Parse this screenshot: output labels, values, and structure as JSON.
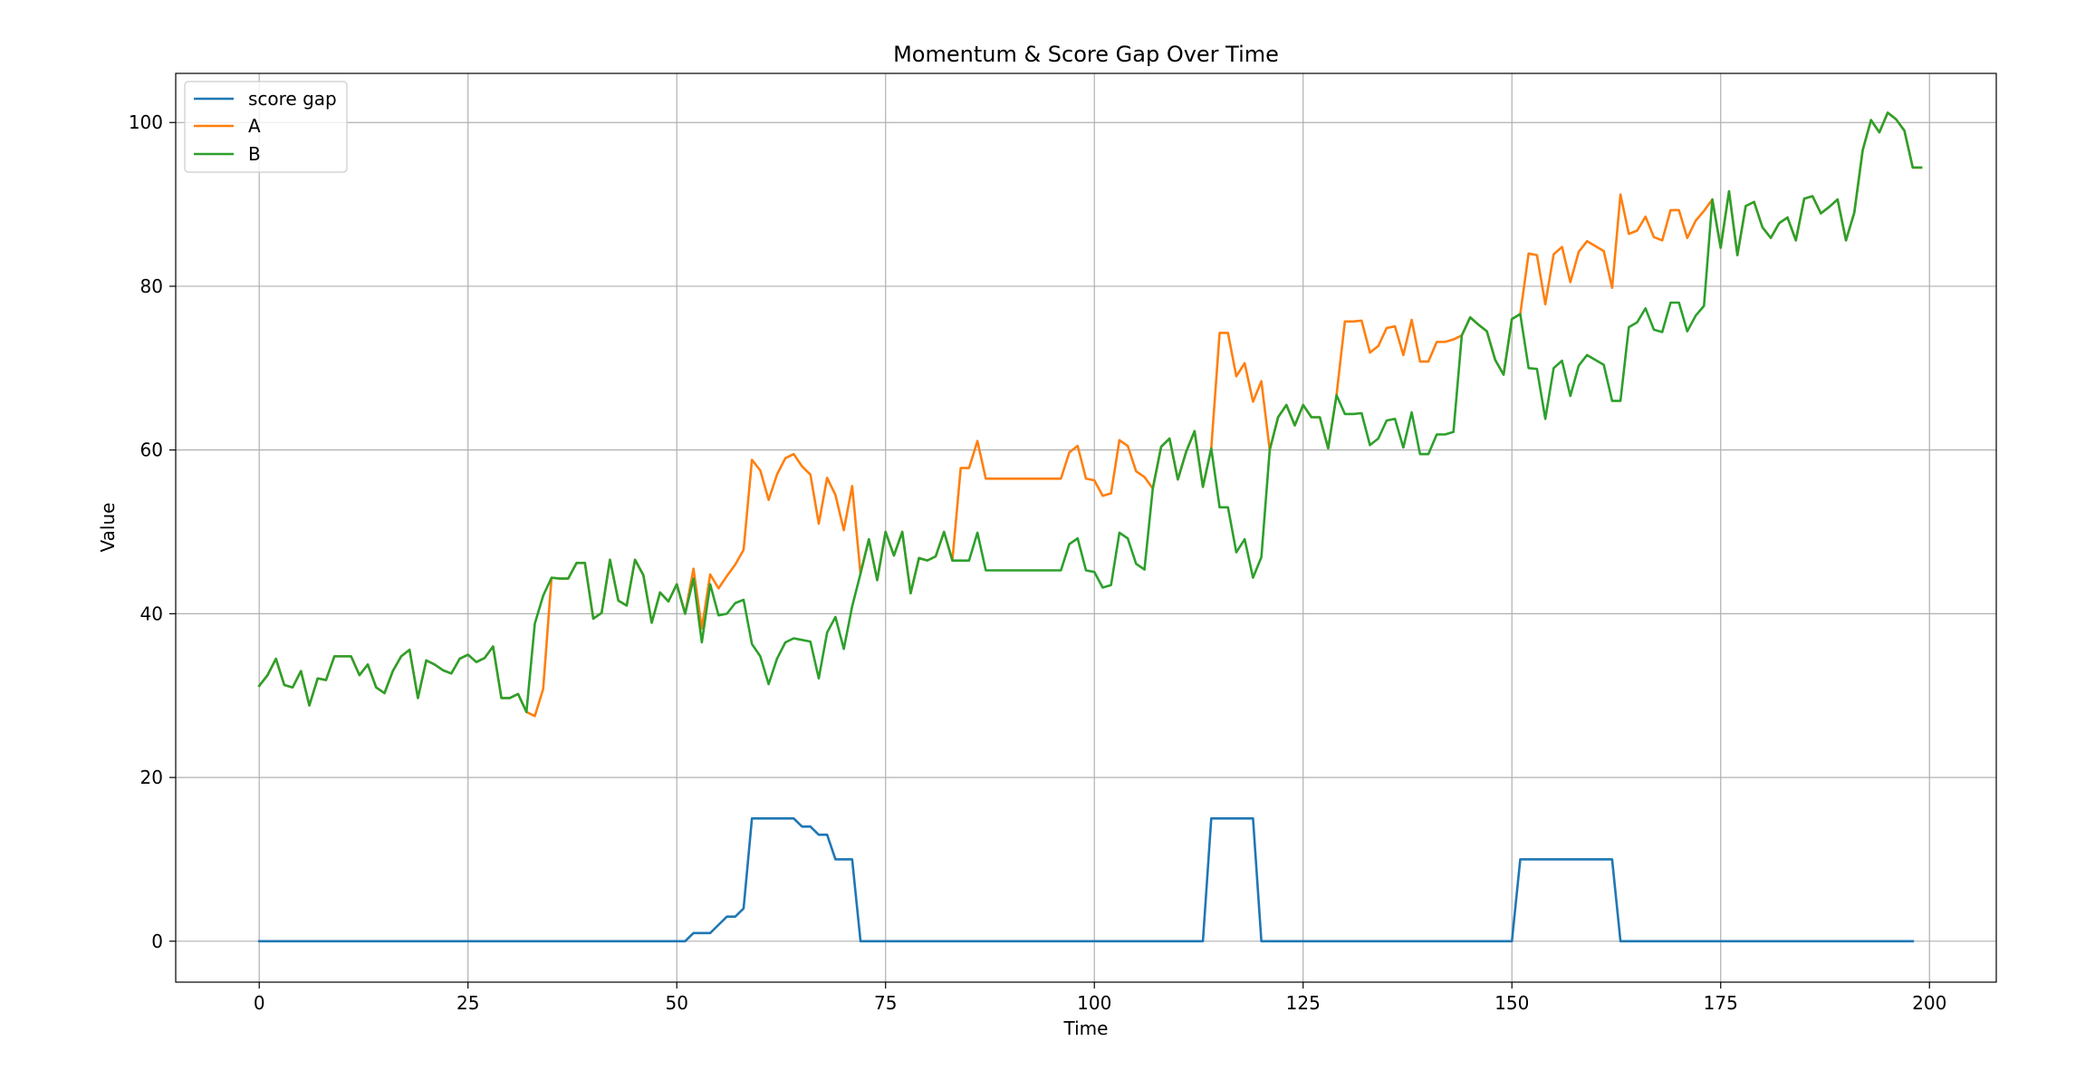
{
  "chart_data": {
    "type": "line",
    "title": "Momentum & Score Gap Over Time",
    "xlabel": "Time",
    "ylabel": "Value",
    "xlim": [
      -10,
      208
    ],
    "ylim": [
      -5,
      106
    ],
    "xticks": [
      0,
      25,
      50,
      75,
      100,
      125,
      150,
      175,
      200
    ],
    "yticks": [
      0,
      20,
      40,
      60,
      80,
      100
    ],
    "grid": true,
    "legend_position": "upper-left",
    "series": [
      {
        "name": "score gap",
        "color": "#1f77b4",
        "values": [
          0,
          0,
          0,
          0,
          0,
          0,
          0,
          0,
          0,
          0,
          0,
          0,
          0,
          0,
          0,
          0,
          0,
          0,
          0,
          0,
          0,
          0,
          0,
          0,
          0,
          0,
          0,
          0,
          0,
          0,
          0,
          0,
          0,
          0,
          0,
          0,
          0,
          0,
          0,
          0,
          0,
          0,
          0,
          0,
          0,
          0,
          0,
          0,
          0,
          0,
          0,
          0,
          1,
          1,
          1,
          2,
          3,
          3,
          4,
          15,
          15,
          15,
          15,
          15,
          15,
          14,
          14,
          13,
          13,
          10,
          10,
          10,
          0,
          0,
          0,
          0,
          0,
          0,
          0,
          0,
          0,
          0,
          0,
          0,
          0,
          0,
          0,
          0,
          0,
          0,
          0,
          0,
          0,
          0,
          0,
          0,
          0,
          0,
          0,
          0,
          0,
          0,
          0,
          0,
          0,
          0,
          0,
          0,
          0,
          0,
          0,
          0,
          0,
          0,
          15,
          15,
          15,
          15,
          15,
          15,
          0,
          0,
          0,
          0,
          0,
          0,
          0,
          0,
          0,
          0,
          0,
          0,
          0,
          0,
          0,
          0,
          0,
          0,
          0,
          0,
          0,
          0,
          0,
          0,
          0,
          0,
          0,
          0,
          0,
          0,
          0,
          10,
          10,
          10,
          10,
          10,
          10,
          10,
          10,
          10,
          10,
          10,
          10,
          0,
          0,
          0,
          0,
          0,
          0,
          0,
          0,
          0,
          0,
          0,
          0,
          0,
          0,
          0,
          0,
          0,
          0,
          0,
          0,
          0,
          0,
          0,
          0,
          0,
          0,
          0,
          0,
          0,
          0,
          0,
          0,
          0,
          0,
          0,
          0
        ]
      },
      {
        "name": "A",
        "color": "#ff7f0e",
        "values": [
          31.2,
          32.5,
          34.5,
          31.3,
          31,
          33,
          28.8,
          32.1,
          31.9,
          34.8,
          34.8,
          34.8,
          32.5,
          33.8,
          31,
          30.3,
          33,
          34.8,
          35.6,
          29.7,
          34.3,
          33.8,
          33.1,
          32.7,
          34.5,
          35,
          34.1,
          34.6,
          36,
          29.7,
          29.7,
          30.2,
          28,
          27.5,
          30.8,
          44.4,
          44.3,
          44.3,
          46.2,
          46.2,
          39.4,
          40.1,
          46.6,
          41.6,
          41,
          46.6,
          44.7,
          38.9,
          42.6,
          41.5,
          43.6,
          40,
          45.5,
          38.2,
          44.8,
          43.1,
          44.6,
          46,
          47.8,
          58.8,
          57.5,
          53.9,
          57,
          59,
          59.5,
          58,
          57,
          51,
          56.6,
          54.5,
          50.2,
          55.6,
          44.9,
          49.1,
          44.1,
          50,
          47.1,
          50,
          42.5,
          46.8,
          46.5,
          47,
          50,
          46.5,
          57.8,
          57.8,
          61.1,
          56.5,
          56.5,
          56.5,
          56.5,
          56.5,
          56.5,
          56.5,
          56.5,
          56.5,
          56.5,
          59.7,
          60.5,
          56.5,
          56.3,
          54.4,
          54.7,
          61.2,
          60.5,
          57.4,
          56.7,
          55.3,
          60.4,
          61.4,
          56.4,
          59.8,
          62.3,
          55.5,
          60.2,
          74.3,
          74.3,
          69,
          70.6,
          65.9,
          68.4,
          60,
          64,
          65.5,
          63,
          65.5,
          64,
          64,
          60.2,
          66.7,
          75.7,
          75.7,
          75.8,
          71.9,
          72.7,
          74.9,
          75.1,
          71.6,
          75.9,
          70.8,
          70.8,
          73.2,
          73.2,
          73.5,
          74,
          76.2,
          75.3,
          74.5,
          71,
          69.2,
          76,
          76.6,
          84,
          83.8,
          77.8,
          83.9,
          84.8,
          80.5,
          84.2,
          85.5,
          84.9,
          84.3,
          79.8,
          91.2,
          86.4,
          86.8,
          88.5,
          86,
          85.6,
          89.3,
          89.3,
          85.9,
          88,
          89.2,
          90.6,
          84.7,
          91.6,
          83.8,
          89.8,
          90.3,
          87.2,
          85.9,
          87.7,
          88.4,
          85.6,
          90.7,
          91,
          88.9,
          89.7,
          90.6,
          85.6,
          89,
          96.6,
          100.3,
          98.8,
          101.2,
          100.4,
          99,
          94.5,
          94.5
        ]
      },
      {
        "name": "B",
        "color": "#2ca02c",
        "values": [
          31.2,
          32.5,
          34.5,
          31.3,
          31,
          33,
          28.8,
          32.1,
          31.9,
          34.8,
          34.8,
          34.8,
          32.5,
          33.8,
          31,
          30.3,
          33,
          34.8,
          35.6,
          29.7,
          34.3,
          33.8,
          33.1,
          32.7,
          34.5,
          35,
          34.1,
          34.6,
          36,
          29.7,
          29.7,
          30.2,
          28,
          38.8,
          42.2,
          44.4,
          44.3,
          44.3,
          46.2,
          46.2,
          39.4,
          40.1,
          46.6,
          41.6,
          41,
          46.6,
          44.7,
          38.9,
          42.6,
          41.5,
          43.6,
          40,
          44.3,
          36.5,
          43.6,
          39.8,
          40,
          41.3,
          41.7,
          36.3,
          34.8,
          31.4,
          34.5,
          36.5,
          37,
          36.8,
          36.6,
          32.1,
          37.7,
          39.6,
          35.7,
          40.9,
          44.9,
          49.1,
          44.1,
          50,
          47.1,
          50,
          42.5,
          46.8,
          46.5,
          47,
          50,
          46.5,
          46.5,
          46.5,
          49.9,
          45.3,
          45.3,
          45.3,
          45.3,
          45.3,
          45.3,
          45.3,
          45.3,
          45.3,
          45.3,
          48.5,
          49.2,
          45.3,
          45.1,
          43.2,
          43.5,
          49.9,
          49.2,
          46.1,
          45.4,
          55.3,
          60.4,
          61.4,
          56.4,
          59.8,
          62.3,
          55.5,
          60.2,
          53,
          53,
          47.5,
          49.1,
          44.4,
          46.9,
          60,
          64,
          65.5,
          63,
          65.5,
          64,
          64,
          60.2,
          66.7,
          64.4,
          64.4,
          64.5,
          60.6,
          61.4,
          63.6,
          63.8,
          60.3,
          64.6,
          59.5,
          59.5,
          61.9,
          61.9,
          62.2,
          74,
          76.2,
          75.3,
          74.5,
          71,
          69.2,
          76,
          76.6,
          70,
          69.9,
          63.8,
          70,
          70.9,
          66.6,
          70.3,
          71.6,
          71,
          70.4,
          66,
          66,
          75,
          75.6,
          77.3,
          74.7,
          74.4,
          78,
          78,
          74.5,
          76.4,
          77.6,
          90.6,
          84.7,
          91.6,
          83.8,
          89.8,
          90.3,
          87.2,
          85.9,
          87.7,
          88.4,
          85.6,
          90.7,
          91,
          88.9,
          89.7,
          90.6,
          85.6,
          89,
          96.6,
          100.3,
          98.8,
          101.2,
          100.4,
          99,
          94.5,
          94.5
        ]
      }
    ]
  }
}
